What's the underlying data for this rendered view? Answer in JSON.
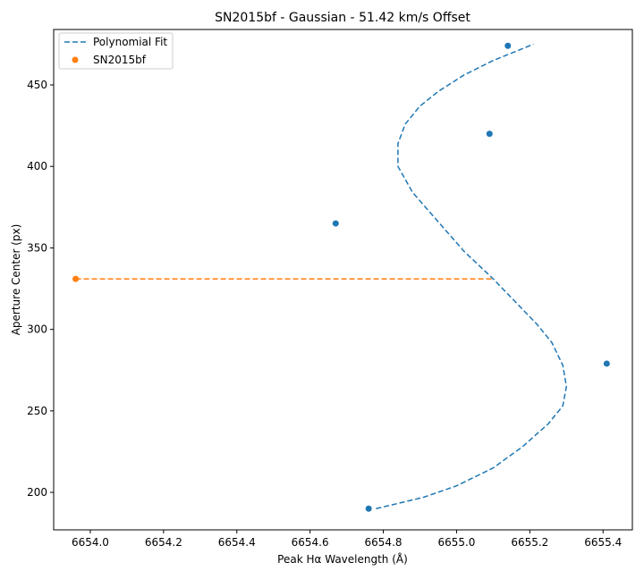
{
  "chart_data": {
    "type": "scatter",
    "title": "SN2015bf - Gaussian - 51.42 km/s Offset",
    "xlabel": "Peak Hα Wavelength (Å)",
    "ylabel": "Aperture Center (px)",
    "xlim": [
      6653.9,
      6655.48
    ],
    "ylim": [
      177,
      484
    ],
    "xticks": [
      6654.0,
      6654.2,
      6654.4,
      6654.6,
      6654.8,
      6655.0,
      6655.2,
      6655.4
    ],
    "xtick_labels": [
      "6654.0",
      "6654.2",
      "6654.4",
      "6654.6",
      "6654.8",
      "6655.0",
      "6655.2",
      "6655.4"
    ],
    "yticks": [
      200,
      250,
      300,
      350,
      400,
      450
    ],
    "ytick_labels": [
      "200",
      "250",
      "300",
      "350",
      "400",
      "450"
    ],
    "grid": false,
    "legend_position": "top-left",
    "series": [
      {
        "name": "Polynomial Fit",
        "kind": "line",
        "style": "dashed",
        "color": "#1f77b4",
        "points": [
          {
            "x": 6654.78,
            "y": 190
          },
          {
            "x": 6654.91,
            "y": 197
          },
          {
            "x": 6655.0,
            "y": 204
          },
          {
            "x": 6655.1,
            "y": 215
          },
          {
            "x": 6655.18,
            "y": 228
          },
          {
            "x": 6655.25,
            "y": 242
          },
          {
            "x": 6655.29,
            "y": 253
          },
          {
            "x": 6655.3,
            "y": 265
          },
          {
            "x": 6655.29,
            "y": 278
          },
          {
            "x": 6655.26,
            "y": 292
          },
          {
            "x": 6655.22,
            "y": 303
          },
          {
            "x": 6655.16,
            "y": 317
          },
          {
            "x": 6655.1,
            "y": 331
          },
          {
            "x": 6655.02,
            "y": 348
          },
          {
            "x": 6654.95,
            "y": 366
          },
          {
            "x": 6654.88,
            "y": 384
          },
          {
            "x": 6654.84,
            "y": 400
          },
          {
            "x": 6654.84,
            "y": 414
          },
          {
            "x": 6654.86,
            "y": 426
          },
          {
            "x": 6654.9,
            "y": 437
          },
          {
            "x": 6654.95,
            "y": 446
          },
          {
            "x": 6655.02,
            "y": 456
          },
          {
            "x": 6655.1,
            "y": 465
          },
          {
            "x": 6655.21,
            "y": 475
          }
        ]
      },
      {
        "name": "",
        "kind": "scatter",
        "color": "#1f77b4",
        "points": [
          {
            "x": 6654.76,
            "y": 190
          },
          {
            "x": 6654.67,
            "y": 365
          },
          {
            "x": 6655.09,
            "y": 420
          },
          {
            "x": 6655.14,
            "y": 474
          },
          {
            "x": 6655.41,
            "y": 279
          }
        ]
      },
      {
        "name": "SN2015bf",
        "kind": "scatter",
        "color": "#ff7f0e",
        "points": [
          {
            "x": 6653.96,
            "y": 331
          }
        ]
      },
      {
        "name": "",
        "kind": "line",
        "style": "dashed",
        "color": "#ff7f0e",
        "points": [
          {
            "x": 6653.96,
            "y": 331
          },
          {
            "x": 6655.1,
            "y": 331
          }
        ]
      }
    ]
  }
}
